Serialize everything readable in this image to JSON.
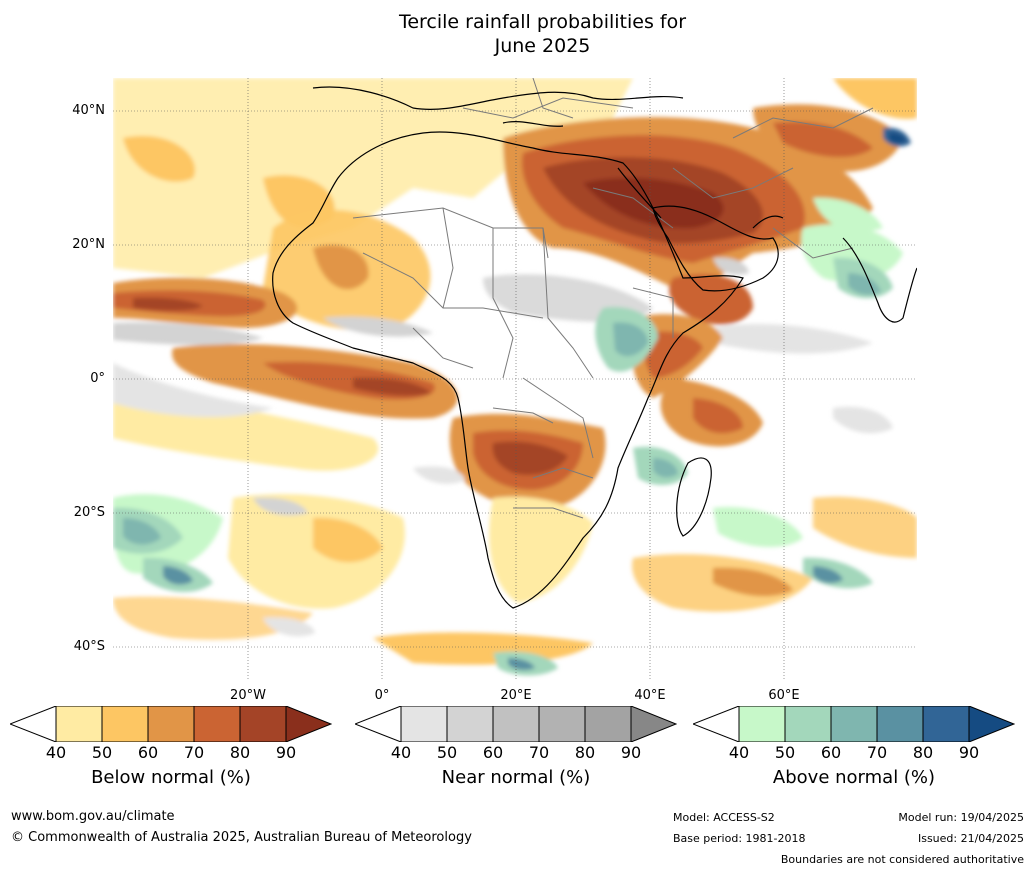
{
  "title": {
    "line1": "Tercile rainfall probabilities for",
    "line2": "June 2025"
  },
  "map": {
    "lat_labels": [
      "40°N",
      "20°N",
      "0°",
      "20°S",
      "40°S"
    ],
    "lon_labels": [
      "20°W",
      "0°",
      "20°E",
      "40°E",
      "60°E"
    ],
    "colors": {
      "below": [
        "#ffeba3",
        "#fdc663",
        "#e19547",
        "#cb6433",
        "#a44427",
        "#8a2f1c"
      ],
      "near": [
        "#e4e4e4",
        "#d3d3d3",
        "#c1c1c1",
        "#b2b2b2",
        "#a3a3a3",
        "#878787"
      ],
      "above": [
        "#c7f8c9",
        "#a3d7bb",
        "#7fb6af",
        "#5a91a2",
        "#316596",
        "#154b82"
      ]
    }
  },
  "legend": {
    "below": {
      "label": "Below normal (%)",
      "ticks": [
        "40",
        "50",
        "60",
        "70",
        "80",
        "90"
      ]
    },
    "near": {
      "label": "Near normal (%)",
      "ticks": [
        "40",
        "50",
        "60",
        "70",
        "80",
        "90"
      ]
    },
    "above": {
      "label": "Above normal (%)",
      "ticks": [
        "40",
        "50",
        "60",
        "70",
        "80",
        "90"
      ]
    }
  },
  "footer": {
    "website": "www.bom.gov.au/climate",
    "copyright": "© Commonwealth of Australia 2025, Australian Bureau of Meteorology",
    "model": "Model: ACCESS-S2",
    "base_period": "Base period: 1981-2018",
    "model_run": "Model run: 19/04/2025",
    "issued": "Issued: 21/04/2025",
    "disclaimer": "Boundaries are not considered authoritative"
  }
}
